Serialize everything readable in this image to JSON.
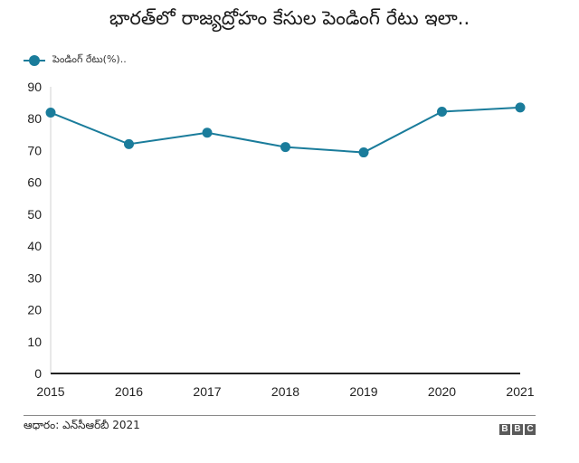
{
  "title": "భారత్‌లో రాజ్యద్రోహం కేసుల పెండింగ్ రేటు ఇలా..",
  "legend": {
    "label": "పెండింగ్ రేటు(%).."
  },
  "footer": {
    "source": "ఆధారం: ఎన్‌సీఆర్‌బీ 2021",
    "logo": [
      "B",
      "B",
      "C"
    ]
  },
  "colors": {
    "series": "#1a7c9b",
    "axis": "#222222",
    "yaxis": "#d0d0d0"
  },
  "chart_data": {
    "type": "line",
    "title": "భారత్‌లో రాజ్యద్రోహం కేసుల పెండింగ్ రేటు ఇలా..",
    "xlabel": "",
    "ylabel": "",
    "categories": [
      "2015",
      "2016",
      "2017",
      "2018",
      "2019",
      "2020",
      "2021"
    ],
    "series": [
      {
        "name": "పెండింగ్ రేటు(%)..",
        "values": [
          81.9,
          72.0,
          75.6,
          71.1,
          69.4,
          82.2,
          83.5
        ]
      }
    ],
    "yticks": [
      0,
      10,
      20,
      30,
      40,
      50,
      60,
      70,
      80,
      90
    ],
    "ylim": [
      0,
      90
    ],
    "grid": false,
    "legend_position": "top-left"
  }
}
